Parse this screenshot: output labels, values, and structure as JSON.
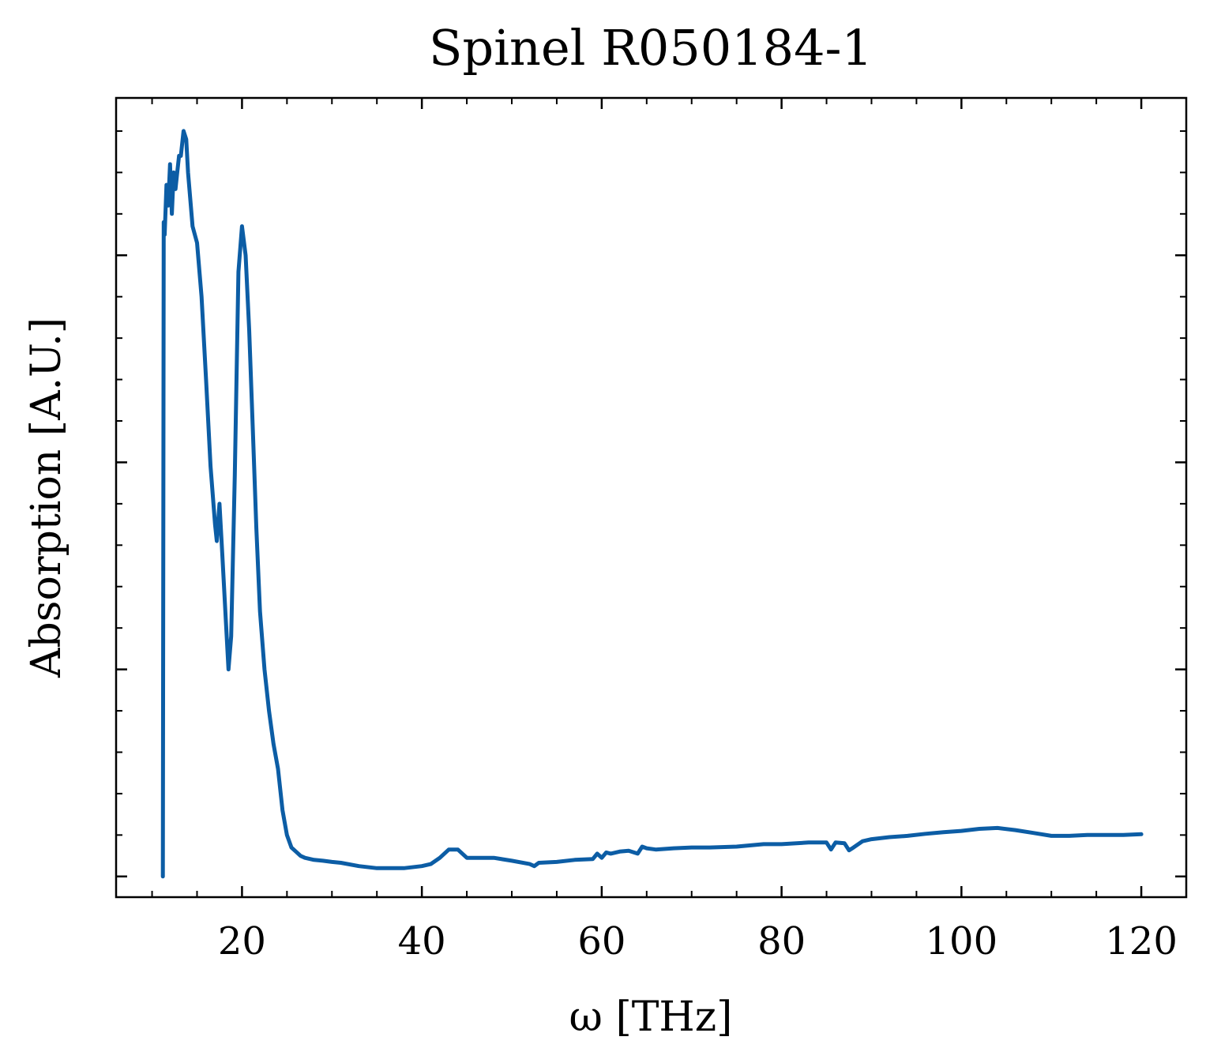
{
  "colors": {
    "series": "#0c5da5",
    "axis": "#000000"
  },
  "chart_data": {
    "type": "line",
    "title": "Spinel R050184-1",
    "xlabel": "ω [THz]",
    "ylabel": "Absorption [A.U.]",
    "xlim": [
      6,
      125
    ],
    "ylim": [
      -0.05,
      1.88
    ],
    "xticks": [
      20,
      40,
      60,
      80,
      100,
      120
    ],
    "xtick_labels": [
      "20",
      "40",
      "60",
      "80",
      "100",
      "120"
    ],
    "yticks": [
      0,
      0.5,
      1.0,
      1.5
    ],
    "yticks_labeled": false,
    "grid": false,
    "legend": "none",
    "series": [
      {
        "x": [
          11.2,
          11.3,
          11.4,
          11.6,
          11.8,
          12.0,
          12.2,
          12.4,
          12.6,
          12.8,
          13.0,
          13.2,
          13.5,
          13.8,
          14.0,
          14.5,
          15.0,
          15.5,
          16.0,
          16.5,
          17.0,
          17.2,
          17.5,
          17.8,
          18.2,
          18.5,
          18.8,
          19.2,
          19.6,
          20.0,
          20.4,
          20.8,
          21.2,
          21.6,
          22.0,
          22.5,
          23.0,
          23.5,
          24.0,
          24.5,
          25.0,
          25.5,
          26.0,
          26.5,
          27.0,
          28.0,
          29.0,
          30.0,
          31.0,
          33.0,
          35.0,
          37.0,
          38.0,
          40.0,
          41.0,
          42.0,
          43.0,
          44.0,
          45.0,
          46.0,
          48.0,
          50.0,
          52.0,
          52.5,
          53.0,
          55.0,
          57.0,
          59.0,
          59.5,
          60.0,
          60.5,
          61.0,
          62.0,
          63.0,
          64.0,
          64.5,
          65.0,
          66.0,
          68.0,
          70.0,
          72.0,
          75.0,
          78.0,
          80.0,
          83.0,
          85.0,
          85.5,
          86.0,
          87.0,
          87.5,
          88.0,
          89.0,
          90.0,
          92.0,
          94.0,
          96.0,
          98.0,
          100.0,
          102.0,
          104.0,
          106.0,
          108.0,
          110.0,
          112.0,
          114.0,
          116.0,
          118.0,
          120.0
        ],
        "y": [
          0.0,
          1.58,
          1.55,
          1.67,
          1.62,
          1.72,
          1.6,
          1.7,
          1.66,
          1.7,
          1.74,
          1.74,
          1.8,
          1.78,
          1.7,
          1.57,
          1.53,
          1.4,
          1.2,
          0.99,
          0.85,
          0.81,
          0.9,
          0.78,
          0.62,
          0.5,
          0.58,
          0.97,
          1.46,
          1.57,
          1.5,
          1.32,
          1.08,
          0.84,
          0.64,
          0.5,
          0.4,
          0.32,
          0.26,
          0.16,
          0.1,
          0.07,
          0.06,
          0.05,
          0.045,
          0.04,
          0.038,
          0.035,
          0.033,
          0.025,
          0.02,
          0.02,
          0.02,
          0.025,
          0.03,
          0.045,
          0.065,
          0.065,
          0.045,
          0.045,
          0.045,
          0.038,
          0.03,
          0.025,
          0.033,
          0.035,
          0.04,
          0.042,
          0.055,
          0.045,
          0.058,
          0.055,
          0.06,
          0.062,
          0.055,
          0.072,
          0.068,
          0.065,
          0.068,
          0.07,
          0.07,
          0.072,
          0.078,
          0.078,
          0.082,
          0.082,
          0.065,
          0.082,
          0.08,
          0.063,
          0.07,
          0.085,
          0.09,
          0.095,
          0.098,
          0.103,
          0.107,
          0.11,
          0.115,
          0.117,
          0.112,
          0.105,
          0.098,
          0.098,
          0.1,
          0.1,
          0.1,
          0.102
        ]
      }
    ]
  }
}
